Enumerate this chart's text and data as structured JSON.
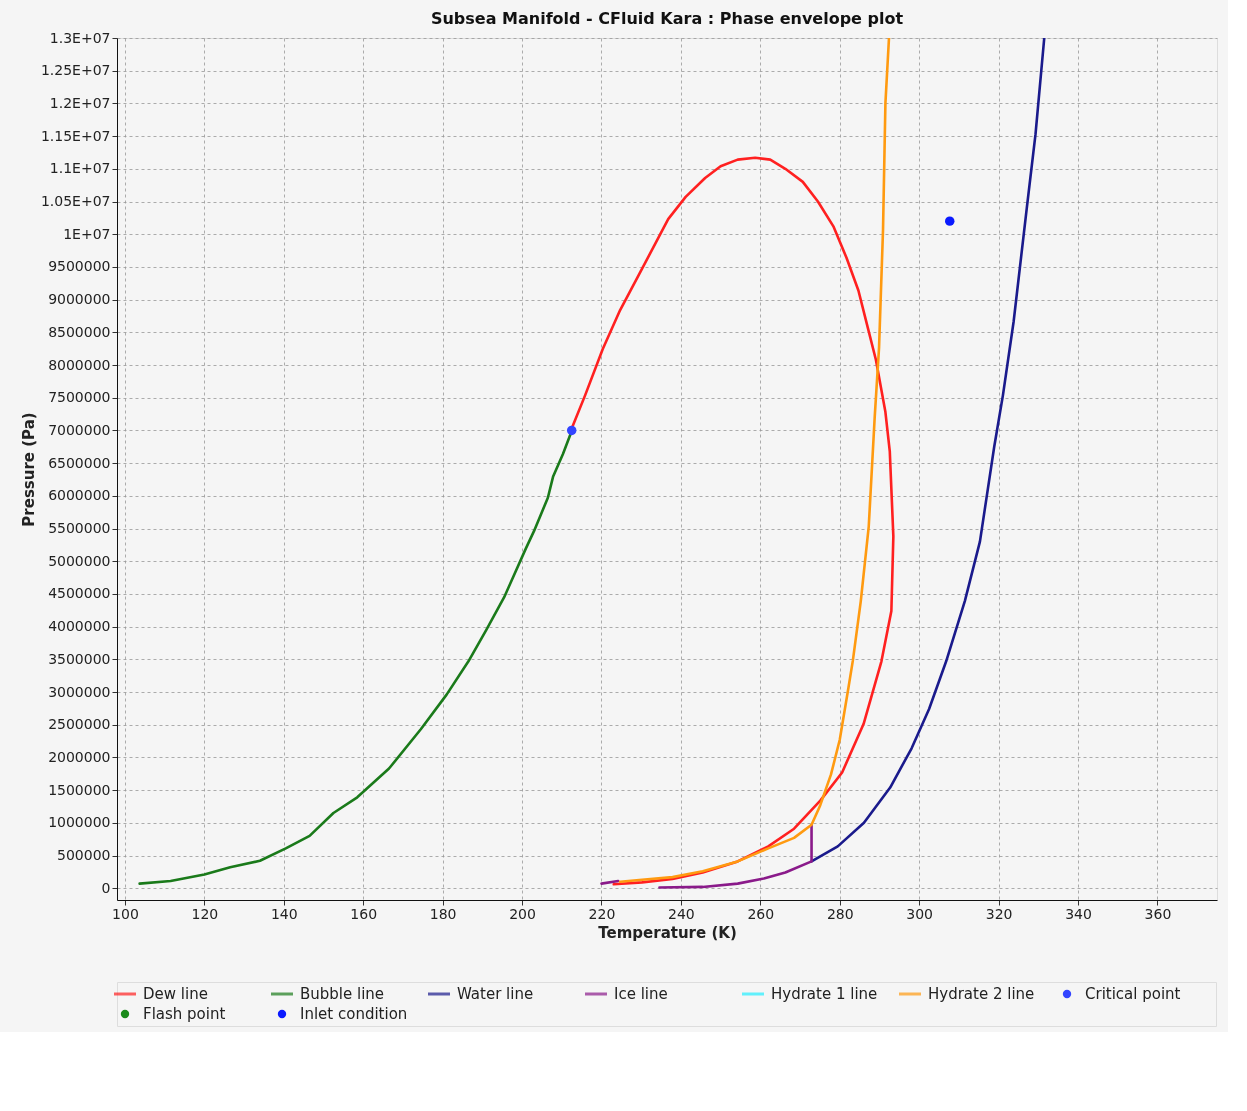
{
  "chart_data": {
    "type": "line",
    "title": "Subsea Manifold  - CFluid Kara : Phase envelope plot",
    "xlabel": "Temperature (K)",
    "ylabel": "Pressure (Pa)",
    "xlim": [
      98,
      375
    ],
    "xticks": [
      100,
      120,
      140,
      160,
      180,
      200,
      220,
      240,
      260,
      280,
      300,
      320,
      340,
      360
    ],
    "ylim": [
      -180000,
      13000000
    ],
    "yticks": [
      0,
      500000,
      1000000,
      1500000,
      2000000,
      2500000,
      3000000,
      3500000,
      4000000,
      4500000,
      5000000,
      5500000,
      6000000,
      6500000,
      7000000,
      7500000,
      8000000,
      8500000,
      9000000,
      9500000,
      {
        "value": 10000000,
        "label": "1E+07"
      },
      {
        "value": 10500000,
        "label": "1.05E+07"
      },
      {
        "value": 11000000,
        "label": "1.1E+07"
      },
      {
        "value": 11500000,
        "label": "1.15E+07"
      },
      {
        "value": 12000000,
        "label": "1.2E+07"
      },
      {
        "value": 12500000,
        "label": "1.25E+07"
      },
      {
        "value": 13000000,
        "label": "1.3E+07"
      }
    ],
    "grid": true,
    "legend": "bottom",
    "line_style": "solid",
    "series": [
      {
        "name": "Dew line",
        "color": "#ff2020",
        "x": [
          223.1,
          230.2,
          237.9,
          245.5,
          254.3,
          262,
          268.5,
          275.1,
          280.6,
          286,
          290.5,
          293,
          293.5,
          292.6,
          291.5,
          289.1,
          286.9,
          284.7,
          281.7,
          278.4,
          274.5,
          270.7,
          266.3,
          262.5,
          258.7,
          254.3,
          250,
          246.1,
          241.2,
          236.8,
          230.2,
          224.7,
          220.3,
          215.9,
          212.3
        ],
        "values": [
          60000,
          90000,
          140000,
          240000,
          410000,
          640000,
          910000,
          1340000,
          1770000,
          2510000,
          3470000,
          4240000,
          5380000,
          6680000,
          7280000,
          8080000,
          8610000,
          9140000,
          9640000,
          10120000,
          10500000,
          10800000,
          11000000,
          11140000,
          11170000,
          11140000,
          11040000,
          10860000,
          10570000,
          10230000,
          9470000,
          8840000,
          8240000,
          7540000,
          7000000
        ]
      },
      {
        "name": "Bubble line",
        "color": "#1a7a1a",
        "x": [
          103.7,
          111.5,
          120,
          126.5,
          134,
          140.5,
          146.5,
          152.5,
          158.5,
          166.5,
          174.5,
          181,
          186.5,
          191,
          195.5,
          201,
          203,
          206.5,
          207.8,
          210.3,
          212.5
        ],
        "values": [
          70000,
          110000,
          210000,
          320000,
          420000,
          610000,
          800000,
          1150000,
          1390000,
          1830000,
          2430000,
          2960000,
          3470000,
          3950000,
          4450000,
          5200000,
          5460000,
          5970000,
          6290000,
          6640000,
          6990000
        ]
      },
      {
        "name": "Water line",
        "color": "#1a1a8c",
        "x": [
          272.9,
          279.5,
          286.1,
          292.7,
          298.1,
          302.5,
          306.8,
          311.5,
          315.3,
          318.9,
          321.1,
          323.8,
          327.1,
          329.3,
          331.5
        ],
        "values": [
          410000,
          640000,
          1000000,
          1540000,
          2140000,
          2740000,
          3470000,
          4390000,
          5300000,
          6750000,
          7540000,
          8670000,
          10400000,
          11530000,
          13000000
        ]
      },
      {
        "name": "Ice line",
        "color": "#8a1a8a",
        "x": [
          220,
          224.2,
          null,
          234.6,
          245.5,
          254.3,
          260.9,
          266.3,
          272.9,
          272.9
        ],
        "values": [
          70000,
          110000,
          null,
          10000,
          20000,
          70000,
          150000,
          240000,
          410000,
          970000
        ]
      },
      {
        "name": "Hydrate 1 line",
        "color": "#22eeff"
      },
      {
        "name": "Hydrate 2 line",
        "color": "#ff9a10",
        "x": [
          224.7,
          230.2,
          237.9,
          245.5,
          254.3,
          262,
          268.5,
          272.9,
          275.1,
          277.8,
          280,
          282.2,
          283.3,
          285.3,
          287.3,
          288.8,
          289.9,
          290.9,
          291.5,
          292.4
        ],
        "values": [
          100000,
          130000,
          170000,
          260000,
          410000,
          610000,
          770000,
          970000,
          1270000,
          1740000,
          2270000,
          3070000,
          3480000,
          4390000,
          5530000,
          7200000,
          8270000,
          10070000,
          12000000,
          13000000
        ]
      },
      {
        "name": "Critical point",
        "type": "scatter",
        "marker": "circle",
        "color": "#3344ff",
        "x": [
          212.5
        ],
        "values": [
          7000000
        ]
      },
      {
        "name": "Flash point",
        "type": "scatter",
        "marker": "circle",
        "color": "#1a8a1a"
      },
      {
        "name": "Inlet condition",
        "type": "scatter",
        "marker": "circle",
        "color": "#0a1aff",
        "x": [
          307.7
        ],
        "values": [
          10200000
        ]
      }
    ]
  }
}
